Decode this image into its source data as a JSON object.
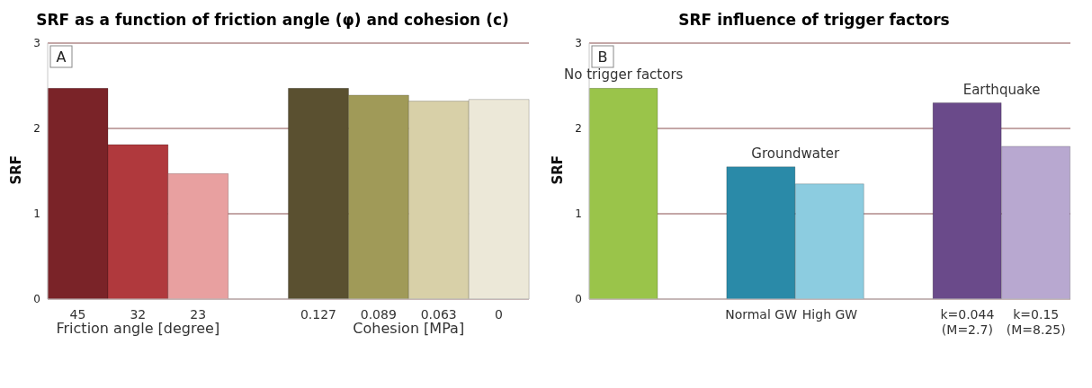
{
  "chart_data": [
    {
      "type": "bar",
      "title": "SRF as a function of friction angle (φ) and cohesion (c)",
      "ylabel": "SRF",
      "categories": [
        "45",
        "32",
        "23",
        null,
        "0.127",
        "0.089",
        "0.063",
        "0"
      ],
      "values": [
        2.47,
        1.81,
        1.47,
        null,
        2.47,
        2.39,
        2.32,
        2.34
      ],
      "colors": [
        "#7a2328",
        "#b0393d",
        "#e8a0a0",
        null,
        "#5a5030",
        "#a09a58",
        "#d8d0a8",
        "#ece8d8"
      ],
      "ylim": [
        0,
        3
      ],
      "yticks": [
        0,
        1,
        2,
        3
      ],
      "grid": "y",
      "annotations": [
        "A",
        "Friction angle [degree]",
        "Cohesion [MPa]"
      ]
    },
    {
      "type": "bar",
      "title": "SRF influence of trigger factors",
      "ylabel": "SRF",
      "categories": [
        null,
        null,
        "Normal GW",
        "High GW",
        null,
        "k=0.044\n(M=2.7)",
        "k=0.15\n(M=8.25)"
      ],
      "values": [
        2.47,
        null,
        1.55,
        1.35,
        null,
        2.3,
        1.79
      ],
      "colors": [
        "#9ac44a",
        null,
        "#2a8aa8",
        "#8ccce0",
        null,
        "#6a4a8a",
        "#b8a8d0"
      ],
      "ylim": [
        0,
        3
      ],
      "yticks": [
        0,
        1,
        2,
        3
      ],
      "grid": "y",
      "annotations": [
        "B",
        "No trigger factors",
        "Groundwater",
        "Earthquake"
      ]
    }
  ]
}
